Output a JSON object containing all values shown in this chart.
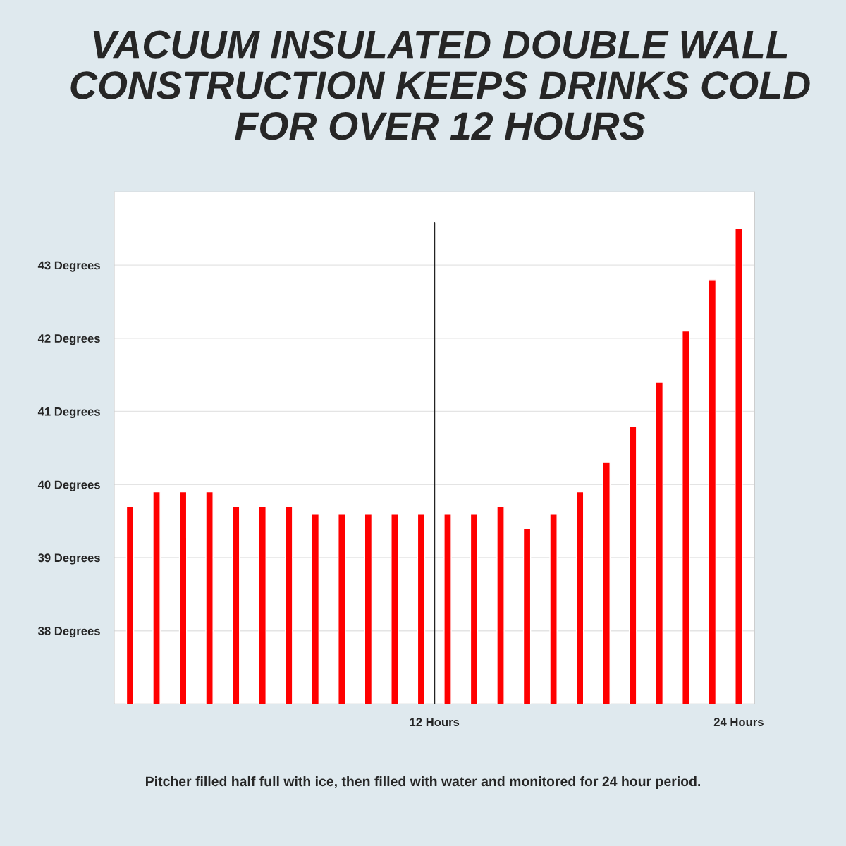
{
  "chart_data": {
    "type": "bar",
    "title": "VACUUM INSULATED DOUBLE WALL\nCONSTRUCTION KEEPS DRINKS COLD\nFOR OVER 12 HOURS",
    "x": [
      1,
      2,
      3,
      4,
      5,
      6,
      7,
      8,
      9,
      10,
      11,
      12,
      13,
      14,
      15,
      16,
      17,
      18,
      19,
      20,
      21,
      22,
      23,
      24
    ],
    "series": [
      {
        "color": "#ff0000",
        "values": [
          39.7,
          39.9,
          39.9,
          39.9,
          39.7,
          39.7,
          39.7,
          39.6,
          39.6,
          39.6,
          39.6,
          39.6,
          39.6,
          39.6,
          39.7,
          39.4,
          39.6,
          39.9,
          40.3,
          40.8,
          41.4,
          42.1,
          42.8,
          43.5
        ]
      }
    ],
    "xlim": [
      0.4,
      24.6
    ],
    "xticks": [
      {
        "value": 12.5,
        "label": "12 Hours"
      },
      {
        "value": 24,
        "label": "24 Hours"
      }
    ],
    "ylim": [
      37,
      44
    ],
    "yticks": [
      {
        "value": 38,
        "label": "38 Degrees"
      },
      {
        "value": 39,
        "label": "39 Degrees"
      },
      {
        "value": 40,
        "label": "40 Degrees"
      },
      {
        "value": 41,
        "label": "41 Degrees"
      },
      {
        "value": 42,
        "label": "42 Degrees"
      },
      {
        "value": 43,
        "label": "43 Degrees"
      }
    ],
    "ref_lines": [
      {
        "axis": "x",
        "value": 12.5,
        "color": "#222222"
      }
    ],
    "grid": "y",
    "annotations": [
      "Pitcher filled half full with ice, then filled with water and monitored for 24 hour period."
    ]
  }
}
